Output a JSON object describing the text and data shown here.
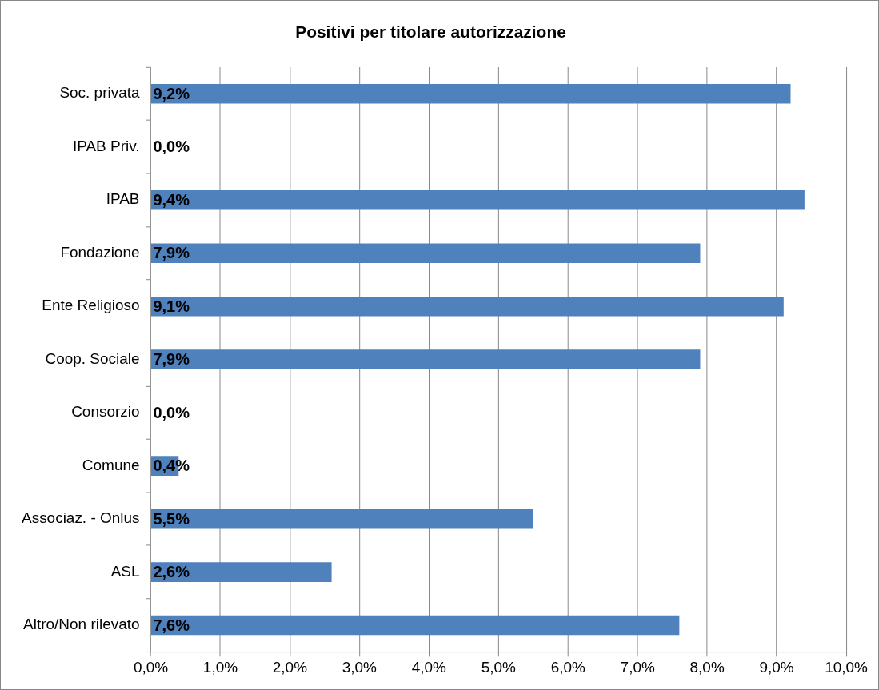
{
  "chart_data": {
    "type": "bar",
    "orientation": "horizontal",
    "title": "Positivi per titolare autorizzazione",
    "categories": [
      "Soc. privata",
      "IPAB Priv.",
      "IPAB",
      "Fondazione",
      "Ente Religioso",
      "Coop. Sociale",
      "Consorzio",
      "Comune",
      "Associaz. - Onlus",
      "ASL",
      "Altro/Non rilevato"
    ],
    "values": [
      9.2,
      0,
      9.4,
      7.9,
      9.1,
      7.9,
      0,
      0.4,
      5.5,
      2.6,
      7.6
    ],
    "value_labels": [
      "9,2%",
      "0,0%",
      "9,4%",
      "7,9%",
      "9,1%",
      "7,9%",
      "0,0%",
      "0,4%",
      "5,5%",
      "2,6%",
      "7,6%"
    ],
    "color": "#4f81bd",
    "xlim": [
      0,
      10
    ],
    "xticks": [
      {
        "value": 0,
        "label": "0,0%"
      },
      {
        "value": 1,
        "label": "1,0%"
      },
      {
        "value": 2,
        "label": "2,0%"
      },
      {
        "value": 3,
        "label": "3,0%"
      },
      {
        "value": 4,
        "label": "4,0%"
      },
      {
        "value": 5,
        "label": "5,0%"
      },
      {
        "value": 6,
        "label": "6,0%"
      },
      {
        "value": 7,
        "label": "7,0%"
      },
      {
        "value": 8,
        "label": "8,0%"
      },
      {
        "value": 9,
        "label": "9,0%"
      },
      {
        "value": 10,
        "label": "10,0%"
      }
    ],
    "grid": "x",
    "legend": false
  }
}
